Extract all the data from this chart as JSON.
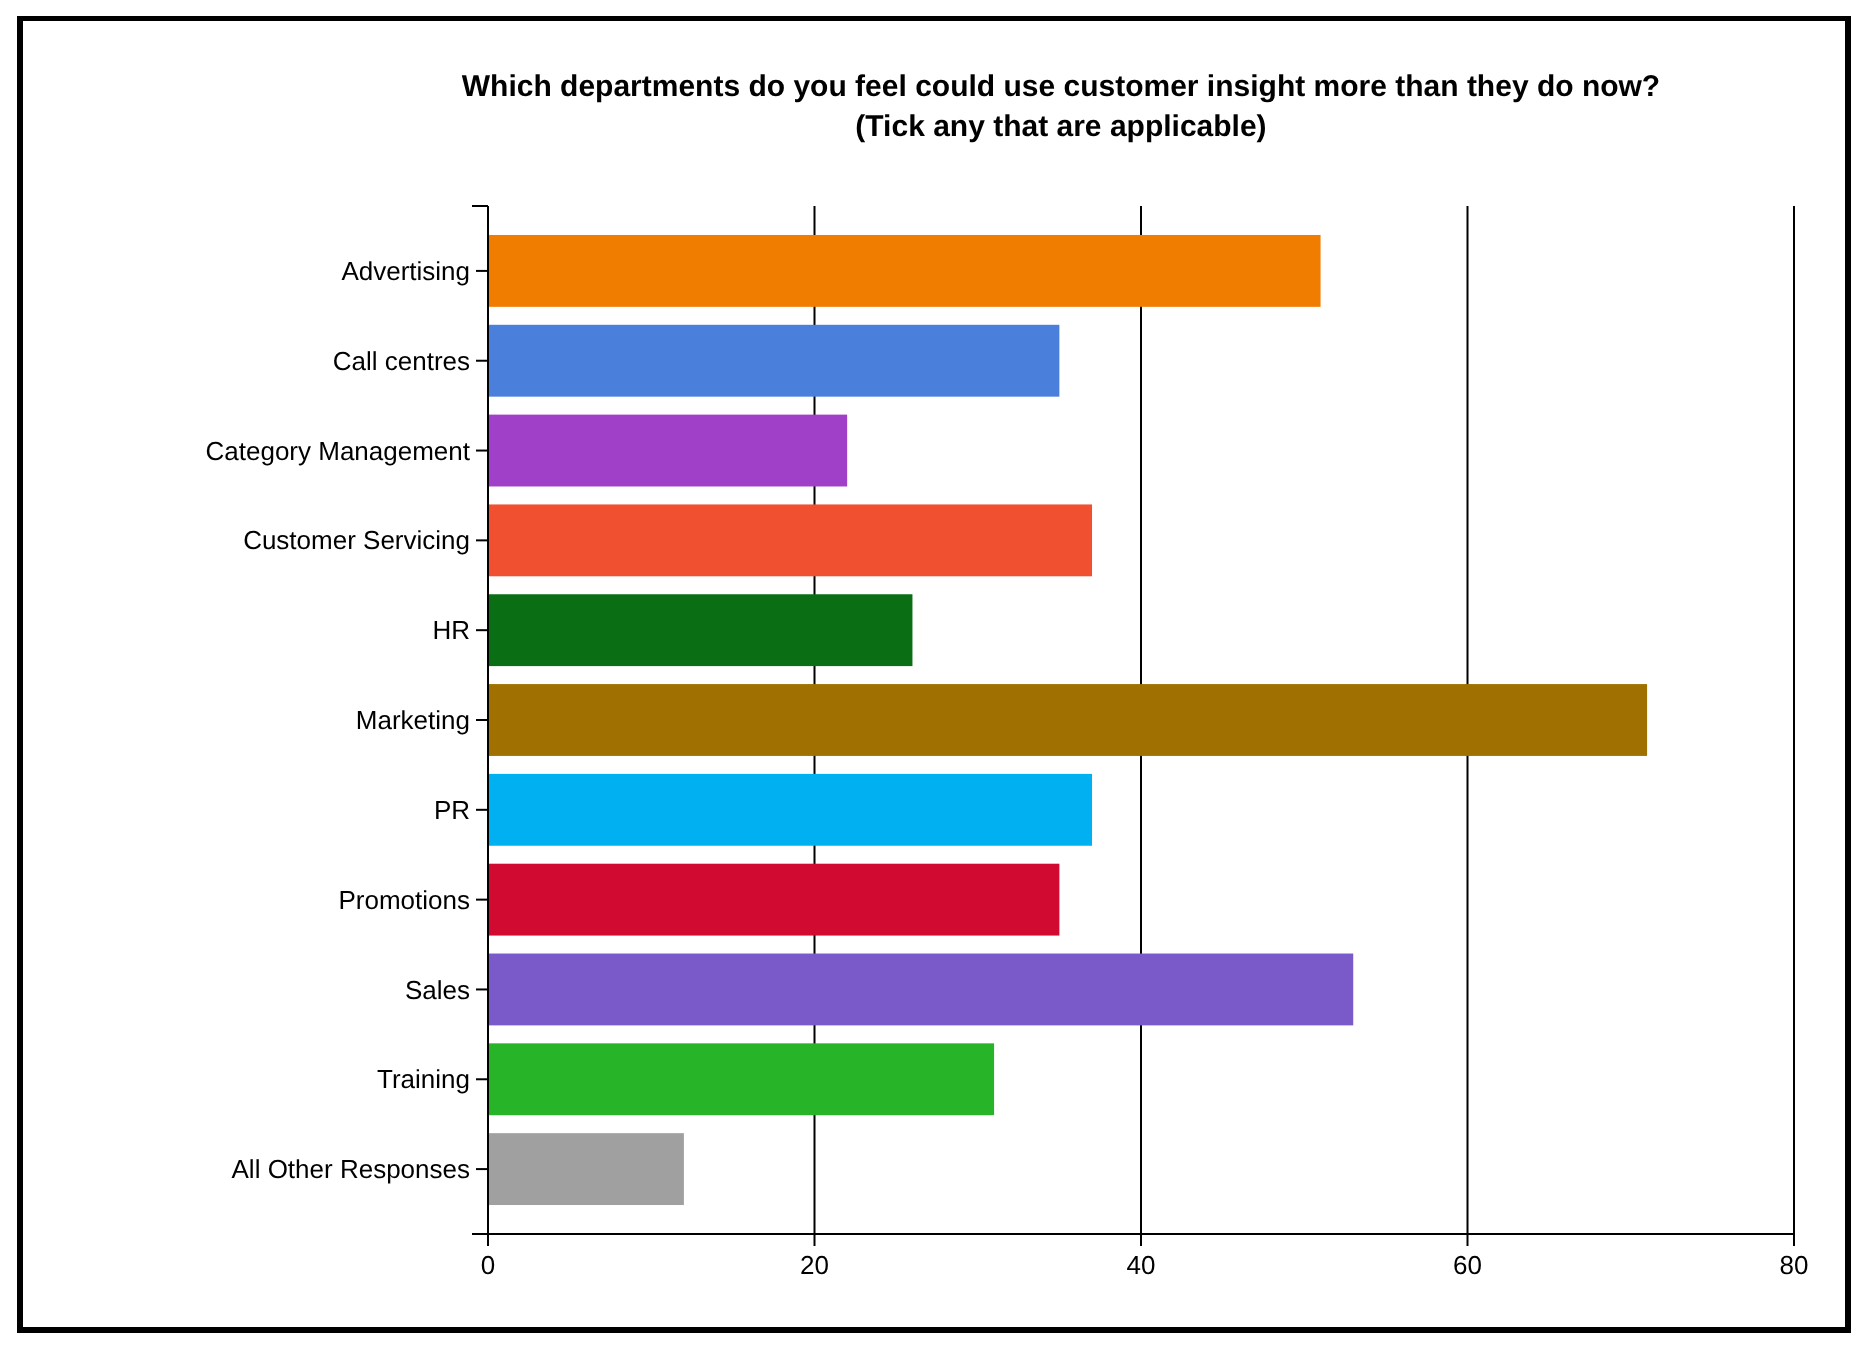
{
  "chart_data": {
    "type": "bar",
    "orientation": "horizontal",
    "title": "Which departments do you feel could use customer insight more than they do now?",
    "subtitle": "(Tick any that are applicable)",
    "categories": [
      "Advertising",
      "Call centres",
      "Category Management",
      "Customer Servicing",
      "HR",
      "Marketing",
      "PR",
      "Promotions",
      "Sales",
      "Training",
      "All Other Responses"
    ],
    "values": [
      51,
      35,
      22,
      37,
      26,
      71,
      37,
      35,
      53,
      31,
      12
    ],
    "colors": [
      "#f07d00",
      "#4a7fdc",
      "#a040c8",
      "#f05030",
      "#0a6e14",
      "#a07000",
      "#00b0f0",
      "#d00a30",
      "#7a5ac8",
      "#28b428",
      "#a0a0a0"
    ],
    "xlim": [
      0,
      80
    ],
    "xticks": [
      0,
      20,
      40,
      60,
      80
    ],
    "grid": "x"
  }
}
